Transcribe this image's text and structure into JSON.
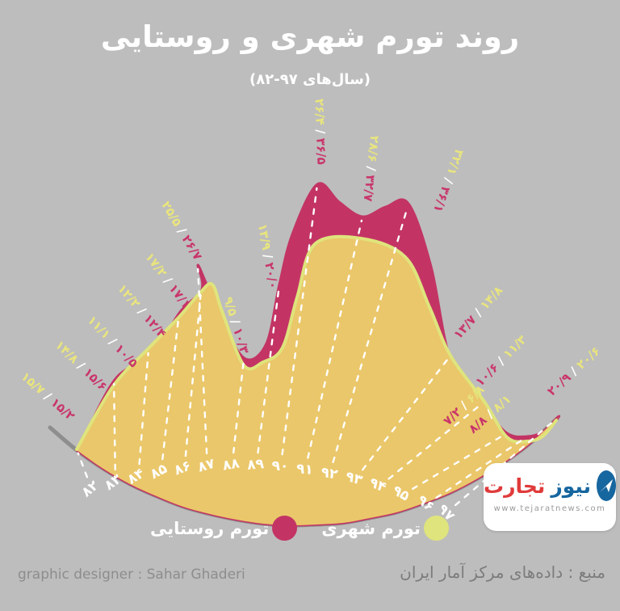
{
  "title": "روند تورم شهری و روستایی",
  "subtitle": "(سال‌های ۹۷-۸۲)",
  "legend": {
    "rural": {
      "label": "تورم روستایی",
      "color": "#c33465"
    },
    "urban": {
      "label": "تورم شهری",
      "color": "#dfe47c"
    }
  },
  "footer": {
    "designer": "graphic designer : Sahar Ghaderi",
    "source": "منبع : داده‌های مرکز آمار ایران"
  },
  "logo": {
    "word1": "تجارت",
    "word2": "نیوز",
    "url": "www.tejaratnews.com"
  },
  "colors": {
    "background": "#bdbdbd",
    "urban_fill": "#eac76a",
    "urban_line": "#dfe47c",
    "rural": "#c33465",
    "label_yellow": "#e9e57d",
    "label_pink": "#c9356b",
    "baseline_gray": "#8e8e8e",
    "white": "#ffffff"
  },
  "chart_data": {
    "type": "area",
    "layout_hint": "fan / radial area chart opening upward, years on a curved band at bottom, dashed white radial guide lines, value pair labels (urban yellow / rural pink) at outer rim",
    "title": "روند تورم شهری و روستایی",
    "subtitle_years": "1382-1397",
    "categories_fa": [
      "۸۲",
      "۸۳",
      "۸۴",
      "۸۵",
      "۸۶",
      "۸۷",
      "۸۸",
      "۸۹",
      "۹۰",
      "۹۱",
      "۹۲",
      "۹۳",
      "۹۴",
      "۹۵",
      "۹۶",
      "۹۷"
    ],
    "categories": [
      1382,
      1383,
      1384,
      1385,
      1386,
      1387,
      1388,
      1389,
      1390,
      1391,
      1392,
      1393,
      1394,
      1395,
      1396,
      1397
    ],
    "series": [
      {
        "name": "تورم شهری",
        "role": "urban",
        "color": "#dfe47c",
        "values": [
          15.7,
          14.8,
          11.1,
          12.2,
          17.2,
          25.5,
          9.5,
          13.9,
          26.4,
          28.6,
          32.1,
          14.8,
          11.3,
          6.8,
          8.1,
          20.6
        ],
        "labels_fa": [
          "۱۵/۷",
          "۱۴/۸",
          "۱۱/۱",
          "۱۲/۲",
          "۱۷/۲",
          "۲۵/۵",
          "۹/۵",
          "۱۳/۹",
          "۲۶/۴",
          "۲۸/۶",
          "۳۲/۱",
          "۱۴/۸",
          "۱۱/۳",
          "۶/۸",
          "۸/۱",
          "۲۰/۶"
        ]
      },
      {
        "name": "تورم روستایی",
        "role": "rural",
        "color": "#c33465",
        "values": [
          15.2,
          15.6,
          10.5,
          12.4,
          17.1,
          26.7,
          10.3,
          20.0,
          36.5,
          32.7,
          36.1,
          13.7,
          10.6,
          7.2,
          8.8,
          20.9
        ],
        "labels_fa": [
          "۱۵/۲",
          "۱۵/۶",
          "۱۰/۵",
          "۱۲/۴",
          "۱۷/۱",
          "۲۶/۷",
          "۱۰/۳",
          "۲۰/۰",
          "۳۶/۵",
          "۳۲/۷",
          "۳۶/۱",
          "۱۳/۷",
          "۱۰/۶",
          "۷/۲",
          "۸/۸",
          "۲۰/۹"
        ]
      }
    ],
    "legend_position": "bottom",
    "grid": "dashed radial white lines per year"
  }
}
